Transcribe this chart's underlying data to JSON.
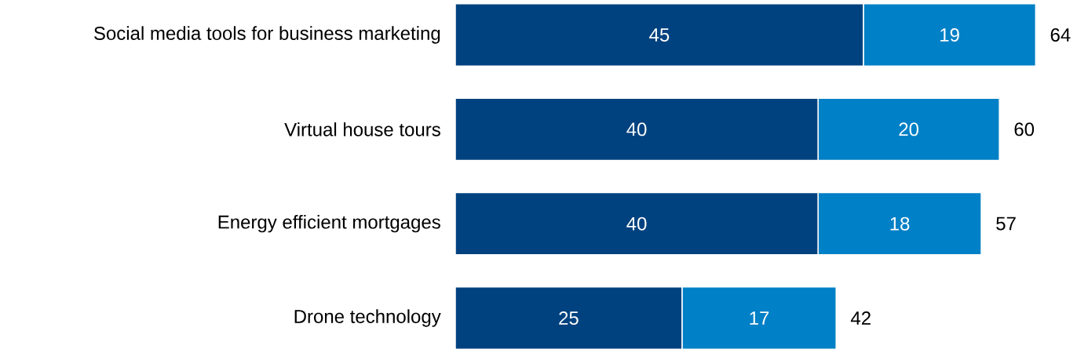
{
  "chart_data": {
    "type": "bar",
    "orientation": "horizontal",
    "stacked": true,
    "categories": [
      "Social media tools for business marketing",
      "Virtual house tours",
      "Energy efficient mortgages",
      "Drone technology"
    ],
    "series": [
      {
        "color": "#00427f",
        "values": [
          45,
          40,
          40,
          25
        ]
      },
      {
        "color": "#0080c6",
        "values": [
          19,
          20,
          18,
          17
        ]
      }
    ],
    "data_labels": true,
    "totals": [
      "64",
      "60",
      "57",
      "42"
    ],
    "tick_labels": "y"
  }
}
